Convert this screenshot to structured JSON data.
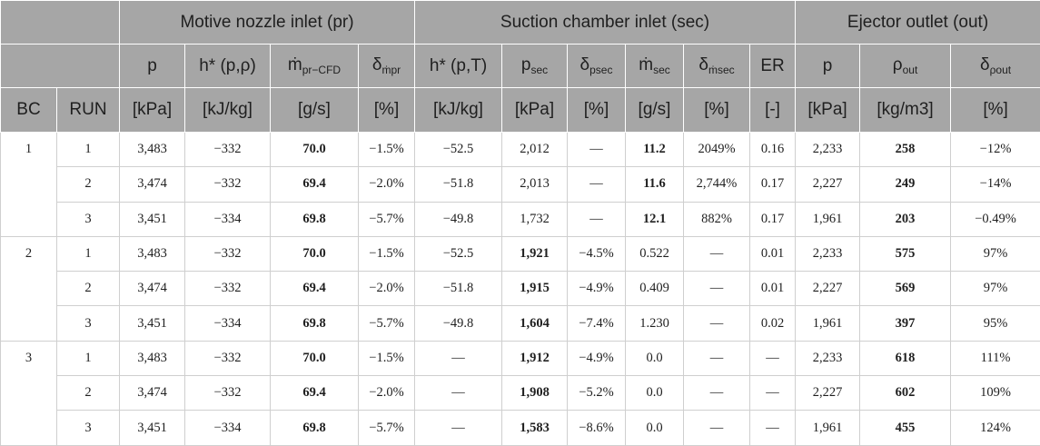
{
  "table": {
    "group_headers": [
      "Motive nozzle inlet (pr)",
      "Suction chamber inlet (sec)",
      "Ejector outlet (out)"
    ],
    "column_names": [
      "p",
      "h* (p,ρ)",
      {
        "base": "ṁ",
        "sub": "pr−CFD"
      },
      {
        "base": "δ",
        "sub": "ṁpr"
      },
      "h* (p,T)",
      {
        "base": "p",
        "sub": "sec"
      },
      {
        "base": "δ",
        "sub": "psec"
      },
      {
        "base": "ṁ",
        "sub": "sec"
      },
      {
        "base": "δ",
        "sub": "ṁsec"
      },
      "ER",
      "p",
      {
        "base": "ρ",
        "sub": "out"
      },
      {
        "base": "δ",
        "sub": "ρout"
      }
    ],
    "header_row3": [
      "BC",
      "RUN",
      "[kPa]",
      "[kJ/kg]",
      "[g/s]",
      "[%]",
      "[kJ/kg]",
      "[kPa]",
      "[%]",
      "[g/s]",
      "[%]",
      "[-]",
      "[kPa]",
      "[kg/m3]",
      "[%]"
    ],
    "groups": [
      {
        "bc": "1",
        "bold": [
          3,
          8,
          12
        ],
        "rows": [
          [
            "1",
            "3,483",
            "−332",
            "70.0",
            "−1.5%",
            "−52.5",
            "2,012",
            "—",
            "11.2",
            "2049%",
            "0.16",
            "2,233",
            "258",
            "−12%"
          ],
          [
            "2",
            "3,474",
            "−332",
            "69.4",
            "−2.0%",
            "−51.8",
            "2,013",
            "—",
            "11.6",
            "2,744%",
            "0.17",
            "2,227",
            "249",
            "−14%"
          ],
          [
            "3",
            "3,451",
            "−334",
            "69.8",
            "−5.7%",
            "−49.8",
            "1,732",
            "—",
            "12.1",
            "882%",
            "0.17",
            "1,961",
            "203",
            "−0.49%"
          ]
        ]
      },
      {
        "bc": "2",
        "bold": [
          3,
          6,
          12
        ],
        "rows": [
          [
            "1",
            "3,483",
            "−332",
            "70.0",
            "−1.5%",
            "−52.5",
            "1,921",
            "−4.5%",
            "0.522",
            "—",
            "0.01",
            "2,233",
            "575",
            "97%"
          ],
          [
            "2",
            "3,474",
            "−332",
            "69.4",
            "−2.0%",
            "−51.8",
            "1,915",
            "−4.9%",
            "0.409",
            "—",
            "0.01",
            "2,227",
            "569",
            "97%"
          ],
          [
            "3",
            "3,451",
            "−334",
            "69.8",
            "−5.7%",
            "−49.8",
            "1,604",
            "−7.4%",
            "1.230",
            "—",
            "0.02",
            "1,961",
            "397",
            "95%"
          ]
        ]
      },
      {
        "bc": "3",
        "bold": [
          3,
          6,
          12
        ],
        "rows": [
          [
            "1",
            "3,483",
            "−332",
            "70.0",
            "−1.5%",
            "—",
            "1,912",
            "−4.9%",
            "0.0",
            "—",
            "—",
            "2,233",
            "618",
            "111%"
          ],
          [
            "2",
            "3,474",
            "−332",
            "69.4",
            "−2.0%",
            "—",
            "1,908",
            "−5.2%",
            "0.0",
            "—",
            "—",
            "2,227",
            "602",
            "109%"
          ],
          [
            "3",
            "3,451",
            "−334",
            "69.8",
            "−5.7%",
            "—",
            "1,583",
            "−8.6%",
            "0.0",
            "—",
            "—",
            "1,961",
            "455",
            "124%"
          ]
        ]
      }
    ]
  }
}
